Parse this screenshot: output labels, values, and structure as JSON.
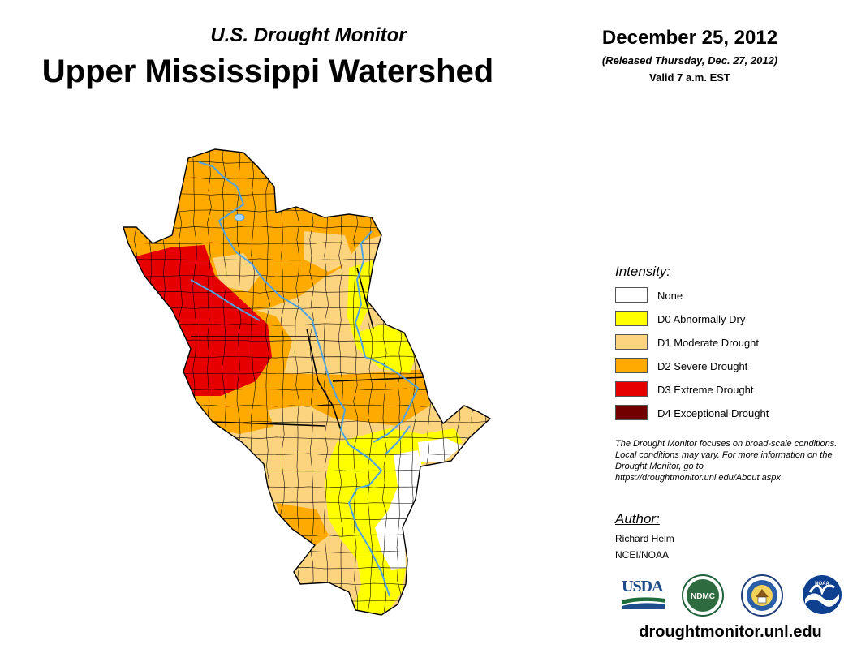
{
  "header": {
    "subtitle": "U.S. Drought Monitor",
    "title": "Upper Mississippi Watershed",
    "date": "December 25, 2012",
    "released": "(Released Thursday, Dec. 27, 2012)",
    "valid": "Valid 7 a.m. EST"
  },
  "colors": {
    "none": "#ffffff",
    "d0": "#ffff00",
    "d1": "#fcd37f",
    "d2": "#ffaa00",
    "d3": "#e60000",
    "d4": "#730000",
    "river": "#4fa3e0",
    "county_border": "#000000"
  },
  "legend": {
    "heading": "Intensity:",
    "items": [
      {
        "label": "None",
        "color": "#ffffff"
      },
      {
        "label": "D0 Abnormally Dry",
        "color": "#ffff00"
      },
      {
        "label": "D1 Moderate Drought",
        "color": "#fcd37f"
      },
      {
        "label": "D2 Severe Drought",
        "color": "#ffaa00"
      },
      {
        "label": "D3 Extreme Drought",
        "color": "#e60000"
      },
      {
        "label": "D4 Exceptional Drought",
        "color": "#730000"
      }
    ]
  },
  "note": "The Drought Monitor focuses on broad-scale conditions. Local conditions may vary. For more information on the Drought Monitor, go to https://droughtmonitor.unl.edu/About.aspx",
  "author": {
    "heading": "Author:",
    "name": "Richard Heim",
    "org": "NCEI/NOAA"
  },
  "logos": {
    "usda": "USDA",
    "ndmc": "NDMC",
    "noaa": "NOAA"
  },
  "footer": {
    "url": "droughtmonitor.unl.edu"
  }
}
